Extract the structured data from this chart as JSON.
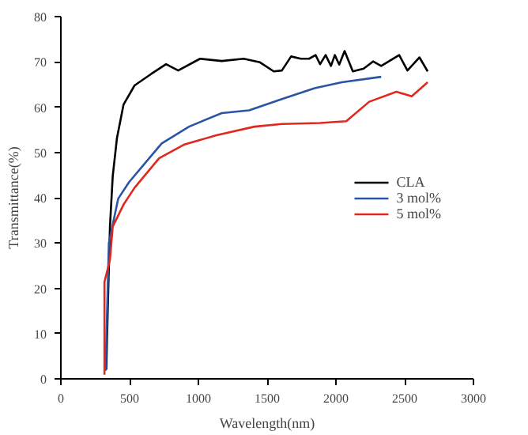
{
  "chart_data": {
    "type": "line",
    "xlabel": "Wavelength(nm)",
    "ylabel": "Transmittance(%)",
    "xlim": [
      0,
      3000
    ],
    "ylim": [
      0,
      80
    ],
    "xticks": [
      0,
      500,
      1000,
      1500,
      2000,
      2500,
      3000
    ],
    "yticks": [
      0,
      10,
      20,
      30,
      40,
      50,
      60,
      70,
      80
    ],
    "grid": false,
    "legend": "right",
    "marker": "none",
    "line_style": "solid",
    "series": [
      {
        "name": "CLA",
        "color": "#000000",
        "x": [
          330,
          345,
          357,
          377,
          408,
          456,
          536,
          655,
          765,
          853,
          1012,
          1170,
          1329,
          1448,
          1548,
          1607,
          1674,
          1745,
          1805,
          1852,
          1885,
          1925,
          1964,
          1992,
          2024,
          2063,
          2123,
          2202,
          2270,
          2329,
          2460,
          2520,
          2607,
          2667
        ],
        "values": [
          2,
          20,
          33.6,
          44.7,
          53.2,
          60.6,
          64.8,
          67.3,
          69.5,
          68.1,
          70.7,
          70.2,
          70.7,
          69.9,
          67.9,
          68.1,
          71.2,
          70.7,
          70.7,
          71.5,
          69.5,
          71.5,
          69.1,
          71.5,
          69.4,
          72.4,
          67.9,
          68.5,
          70.1,
          69.1,
          71.5,
          68.1,
          71,
          67.9
        ]
      },
      {
        "name": "3 mol%",
        "color": "#2a55a5",
        "x": [
          325,
          349,
          417,
          495,
          614,
          733,
          932,
          1170,
          1369,
          1607,
          1845,
          2043,
          2329
        ],
        "values": [
          1.8,
          30,
          39.8,
          43.4,
          47.7,
          52,
          55.7,
          58.7,
          59.3,
          61.8,
          64.2,
          65.5,
          66.7
        ]
      },
      {
        "name": "5 mol%",
        "color": "#e0281e",
        "x": [
          317,
          317,
          357,
          377,
          456,
          536,
          714,
          893,
          1131,
          1408,
          1607,
          1885,
          2075,
          2242,
          2440,
          2551,
          2667
        ],
        "values": [
          0.9,
          21.4,
          26.3,
          33.6,
          38.5,
          42.2,
          48.7,
          51.7,
          53.8,
          55.7,
          56.3,
          56.5,
          56.9,
          61.2,
          63.4,
          62.4,
          65.5
        ]
      }
    ]
  }
}
